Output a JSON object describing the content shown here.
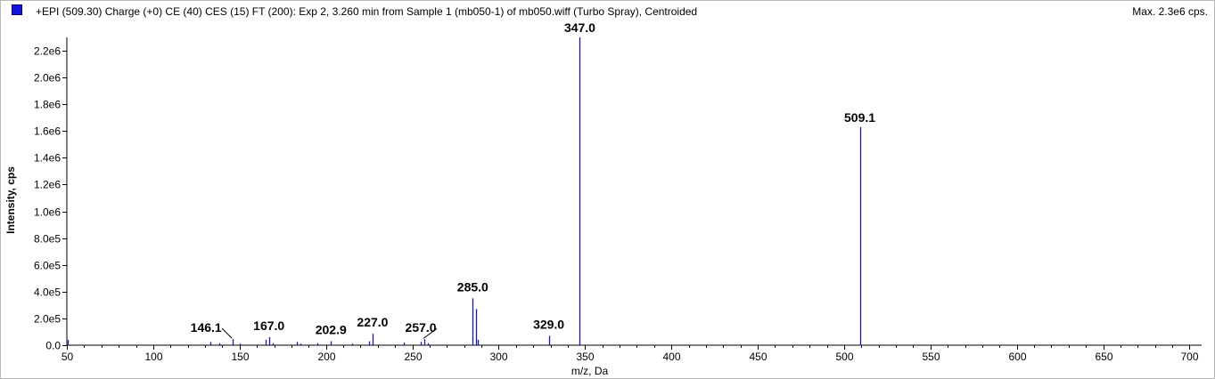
{
  "header": {
    "title": "+EPI (509.30) Charge (+0) CE (40) CES (15) FT (200): Exp 2, 3.260 min from Sample 1 (mb050-1) of mb050.wiff (Turbo Spray), Centroided",
    "max_label": "Max. 2.3e6 cps."
  },
  "colors": {
    "series": "#1a1aa8",
    "swatch": "#1414d6",
    "axis": "#000000"
  },
  "chart_data": {
    "type": "bar",
    "xlabel": "m/z, Da",
    "ylabel": "Intensity, cps",
    "xlim": [
      50,
      707
    ],
    "ylim": [
      0,
      2300000
    ],
    "x_ticks": [
      50,
      100,
      150,
      200,
      250,
      300,
      350,
      400,
      450,
      500,
      550,
      600,
      650,
      700
    ],
    "x_tick_labels": [
      "50",
      "100",
      "150",
      "200",
      "250",
      "300",
      "350",
      "400",
      "450",
      "500",
      "550",
      "600",
      "650",
      "700"
    ],
    "y_ticks": [
      0,
      200000,
      400000,
      600000,
      800000,
      1000000,
      1200000,
      1400000,
      1600000,
      1800000,
      2000000,
      2200000
    ],
    "y_tick_labels": [
      "0.0",
      "2.0e5",
      "4.0e5",
      "6.0e5",
      "8.0e5",
      "1.0e6",
      "1.2e6",
      "1.4e6",
      "1.6e6",
      "1.8e6",
      "2.0e6",
      "2.2e6"
    ],
    "peaks": [
      {
        "mz": 50.3,
        "intensity": 40000
      },
      {
        "mz": 133.0,
        "intensity": 25000
      },
      {
        "mz": 138.0,
        "intensity": 15000
      },
      {
        "mz": 146.1,
        "intensity": 45000
      },
      {
        "mz": 150.0,
        "intensity": 12000
      },
      {
        "mz": 165.0,
        "intensity": 40000
      },
      {
        "mz": 167.0,
        "intensity": 60000
      },
      {
        "mz": 169.0,
        "intensity": 15000
      },
      {
        "mz": 183.0,
        "intensity": 25000
      },
      {
        "mz": 185.0,
        "intensity": 12000
      },
      {
        "mz": 195.0,
        "intensity": 15000
      },
      {
        "mz": 202.9,
        "intensity": 30000
      },
      {
        "mz": 215.0,
        "intensity": 12000
      },
      {
        "mz": 225.0,
        "intensity": 30000
      },
      {
        "mz": 227.0,
        "intensity": 85000
      },
      {
        "mz": 245.0,
        "intensity": 20000
      },
      {
        "mz": 255.0,
        "intensity": 25000
      },
      {
        "mz": 257.0,
        "intensity": 45000
      },
      {
        "mz": 259.0,
        "intensity": 15000
      },
      {
        "mz": 285.0,
        "intensity": 350000
      },
      {
        "mz": 287.0,
        "intensity": 270000
      },
      {
        "mz": 288.0,
        "intensity": 40000
      },
      {
        "mz": 329.0,
        "intensity": 70000
      },
      {
        "mz": 347.0,
        "intensity": 2300000
      },
      {
        "mz": 509.1,
        "intensity": 1630000
      }
    ],
    "peak_labels": [
      {
        "text": "146.1",
        "mz": 146.1,
        "intensity": 45000,
        "dx": -30,
        "dy": -8
      },
      {
        "text": "167.0",
        "mz": 167.0,
        "intensity": 60000,
        "dx": 0,
        "dy": -8
      },
      {
        "text": "202.9",
        "mz": 202.9,
        "intensity": 30000,
        "dx": 0,
        "dy": -8
      },
      {
        "text": "227.0",
        "mz": 227.0,
        "intensity": 85000,
        "dx": 0,
        "dy": -8
      },
      {
        "text": "257.0",
        "mz": 257.0,
        "intensity": 45000,
        "dx": -4,
        "dy": -8
      },
      {
        "text": "285.0",
        "mz": 285.0,
        "intensity": 350000,
        "dx": 0,
        "dy": -8
      },
      {
        "text": "329.0",
        "mz": 329.0,
        "intensity": 70000,
        "dx": 0,
        "dy": -8
      },
      {
        "text": "347.0",
        "mz": 347.0,
        "intensity": 2300000,
        "dx": 0,
        "dy": -6
      },
      {
        "text": "509.1",
        "mz": 509.1,
        "intensity": 1630000,
        "dx": 0,
        "dy": -6
      }
    ]
  }
}
